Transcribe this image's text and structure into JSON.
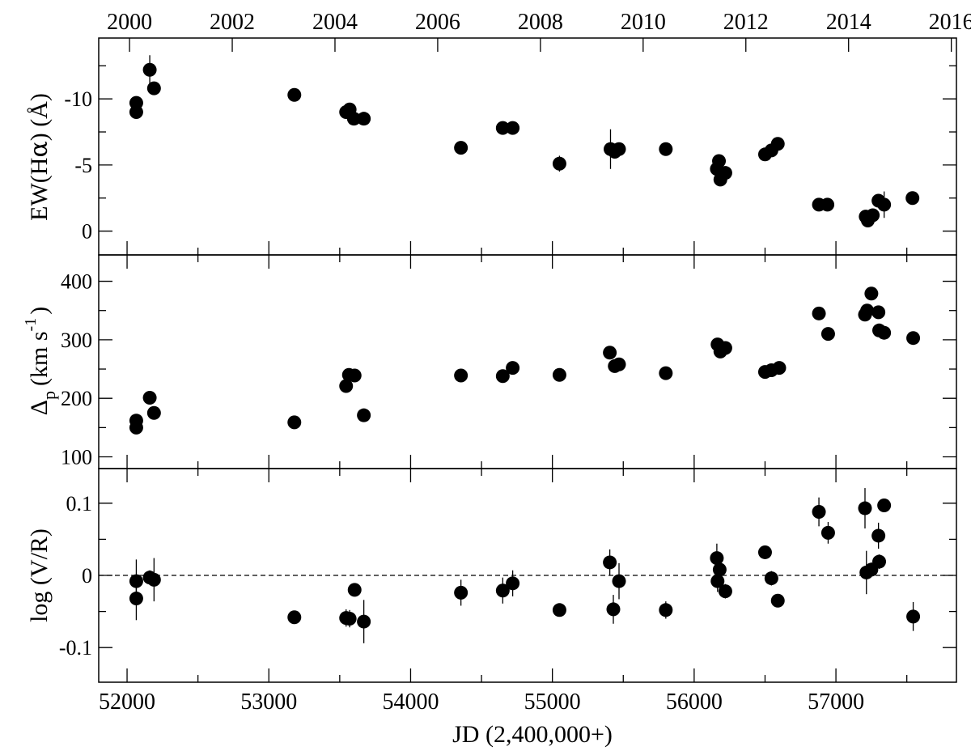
{
  "figure": {
    "top_axis": {
      "range": [
        1999.4,
        2016.1
      ],
      "ticks": [
        2000,
        2002,
        2004,
        2006,
        2008,
        2010,
        2012,
        2014,
        2016
      ],
      "tick_labels": [
        "2000",
        "2002",
        "2004",
        "2006",
        "2008",
        "2010",
        "2012",
        "2014",
        "2016"
      ]
    },
    "bottom_axis": {
      "label": "JD (2,400,000+)",
      "range": [
        51800,
        57850
      ],
      "ticks": [
        52000,
        53000,
        54000,
        55000,
        56000,
        57000
      ],
      "tick_labels": [
        "52000",
        "53000",
        "54000",
        "55000",
        "56000",
        "57000"
      ],
      "minor_ticks": [
        52500,
        53500,
        54500,
        55500,
        56500,
        57500
      ]
    }
  },
  "chart_data": [
    {
      "type": "scatter",
      "panel": "top",
      "ylabel_main": "EW(H",
      "ylabel_greek": "α",
      "ylabel_tail": ") (Å)",
      "ylim": [
        1.8,
        -14.6
      ],
      "yticks": [
        -10,
        -5,
        0
      ],
      "ytick_labels": [
        "-10",
        "-5",
        "0"
      ],
      "y_minor_ticks": [
        -12.5,
        -7.5,
        -2.5
      ],
      "points": [
        {
          "x": 52065,
          "y": -9.7,
          "err": 0.2
        },
        {
          "x": 52065,
          "y": -9.0,
          "err": 0.2
        },
        {
          "x": 52160,
          "y": -12.2,
          "err": 1.1
        },
        {
          "x": 52190,
          "y": -10.8,
          "err": 0.3
        },
        {
          "x": 53180,
          "y": -10.3,
          "err": 0.4
        },
        {
          "x": 53545,
          "y": -9.0,
          "err": 0.3
        },
        {
          "x": 53570,
          "y": -9.2,
          "err": 0.3
        },
        {
          "x": 53600,
          "y": -8.5,
          "err": 0.3
        },
        {
          "x": 53670,
          "y": -8.5,
          "err": 0.2
        },
        {
          "x": 54355,
          "y": -6.3,
          "err": 0.2
        },
        {
          "x": 54650,
          "y": -7.8,
          "err": 0.5
        },
        {
          "x": 54720,
          "y": -7.8,
          "err": 0.3
        },
        {
          "x": 55050,
          "y": -5.1,
          "err": 0.6
        },
        {
          "x": 55410,
          "y": -6.2,
          "err": 1.5
        },
        {
          "x": 55440,
          "y": -6.0,
          "err": 0.3
        },
        {
          "x": 55470,
          "y": -6.2,
          "err": 0.3
        },
        {
          "x": 55800,
          "y": -6.2,
          "err": 0.2
        },
        {
          "x": 56160,
          "y": -4.7,
          "err": 0.4
        },
        {
          "x": 56175,
          "y": -5.3,
          "err": 0.4
        },
        {
          "x": 56185,
          "y": -3.9,
          "err": 0.4
        },
        {
          "x": 56220,
          "y": -4.4,
          "err": 0.3
        },
        {
          "x": 56500,
          "y": -5.8,
          "err": 0.3
        },
        {
          "x": 56545,
          "y": -6.1,
          "err": 0.3
        },
        {
          "x": 56590,
          "y": -6.6,
          "err": 0.3
        },
        {
          "x": 56880,
          "y": -2.0,
          "err": 0.3
        },
        {
          "x": 56940,
          "y": -2.0,
          "err": 0.2
        },
        {
          "x": 57210,
          "y": -1.1,
          "err": 0.4
        },
        {
          "x": 57225,
          "y": -0.8,
          "err": 0.5
        },
        {
          "x": 57260,
          "y": -1.2,
          "err": 0.3
        },
        {
          "x": 57300,
          "y": -2.3,
          "err": 0.5
        },
        {
          "x": 57340,
          "y": -2.0,
          "err": 1.0
        },
        {
          "x": 57540,
          "y": -2.5,
          "err": 0.2
        }
      ]
    },
    {
      "type": "scatter",
      "panel": "middle",
      "ylabel_main": "Δ",
      "ylabel_sub": "p",
      "ylabel_unit": "(km s",
      "ylabel_sup": "-1",
      "ylabel_close": ")",
      "ylim": [
        80,
        445
      ],
      "yticks": [
        100,
        200,
        300,
        400
      ],
      "ytick_labels": [
        "100",
        "200",
        "300",
        "400"
      ],
      "y_minor_ticks": [
        150,
        250,
        350
      ],
      "points": [
        {
          "x": 52065,
          "y": 162
        },
        {
          "x": 52065,
          "y": 150
        },
        {
          "x": 52160,
          "y": 201
        },
        {
          "x": 52190,
          "y": 175
        },
        {
          "x": 53180,
          "y": 159
        },
        {
          "x": 53545,
          "y": 221
        },
        {
          "x": 53565,
          "y": 240
        },
        {
          "x": 53605,
          "y": 239
        },
        {
          "x": 53670,
          "y": 171
        },
        {
          "x": 54355,
          "y": 239
        },
        {
          "x": 54650,
          "y": 238
        },
        {
          "x": 54720,
          "y": 252
        },
        {
          "x": 55050,
          "y": 240
        },
        {
          "x": 55405,
          "y": 278
        },
        {
          "x": 55440,
          "y": 255
        },
        {
          "x": 55470,
          "y": 258
        },
        {
          "x": 55800,
          "y": 243
        },
        {
          "x": 56165,
          "y": 292
        },
        {
          "x": 56185,
          "y": 280
        },
        {
          "x": 56220,
          "y": 286
        },
        {
          "x": 56500,
          "y": 245
        },
        {
          "x": 56545,
          "y": 248
        },
        {
          "x": 56600,
          "y": 252
        },
        {
          "x": 56880,
          "y": 345
        },
        {
          "x": 56945,
          "y": 310
        },
        {
          "x": 57205,
          "y": 343
        },
        {
          "x": 57220,
          "y": 350
        },
        {
          "x": 57250,
          "y": 379
        },
        {
          "x": 57300,
          "y": 347
        },
        {
          "x": 57305,
          "y": 316
        },
        {
          "x": 57340,
          "y": 312
        },
        {
          "x": 57545,
          "y": 303
        }
      ]
    },
    {
      "type": "scatter",
      "panel": "bottom",
      "ylabel": "log (V/R)",
      "ylim": [
        -0.148,
        0.148
      ],
      "yticks": [
        -0.1,
        0,
        0.1
      ],
      "ytick_labels": [
        "-0.1",
        "0",
        "0.1"
      ],
      "y_minor_ticks": [
        -0.05,
        0.05
      ],
      "reference_line": {
        "y": 0,
        "style": "dashed"
      },
      "points": [
        {
          "x": 52065,
          "y": -0.008,
          "err": 0.03
        },
        {
          "x": 52065,
          "y": -0.032,
          "err": 0.03
        },
        {
          "x": 52160,
          "y": -0.003,
          "err": 0.01
        },
        {
          "x": 52190,
          "y": -0.006,
          "err": 0.03
        },
        {
          "x": 53180,
          "y": -0.058,
          "err": 0.006
        },
        {
          "x": 53545,
          "y": -0.059,
          "err": 0.012
        },
        {
          "x": 53570,
          "y": -0.06,
          "err": 0.012
        },
        {
          "x": 53605,
          "y": -0.02,
          "err": 0.006
        },
        {
          "x": 53670,
          "y": -0.064,
          "err": 0.03
        },
        {
          "x": 54355,
          "y": -0.024,
          "err": 0.018
        },
        {
          "x": 54650,
          "y": -0.021,
          "err": 0.018
        },
        {
          "x": 54720,
          "y": -0.011,
          "err": 0.018
        },
        {
          "x": 55050,
          "y": -0.048,
          "err": 0.006
        },
        {
          "x": 55405,
          "y": 0.018,
          "err": 0.018
        },
        {
          "x": 55430,
          "y": -0.047,
          "err": 0.02
        },
        {
          "x": 55470,
          "y": -0.008,
          "err": 0.025
        },
        {
          "x": 55800,
          "y": -0.048,
          "err": 0.012
        },
        {
          "x": 56160,
          "y": 0.024,
          "err": 0.02
        },
        {
          "x": 56165,
          "y": -0.008,
          "err": 0.015
        },
        {
          "x": 56180,
          "y": 0.008,
          "err": 0.012
        },
        {
          "x": 56220,
          "y": -0.022,
          "err": 0.01
        },
        {
          "x": 56500,
          "y": 0.032,
          "err": 0.006
        },
        {
          "x": 56545,
          "y": -0.004,
          "err": 0.01
        },
        {
          "x": 56590,
          "y": -0.035,
          "err": 0.006
        },
        {
          "x": 56880,
          "y": 0.088,
          "err": 0.02
        },
        {
          "x": 56945,
          "y": 0.059,
          "err": 0.015
        },
        {
          "x": 57205,
          "y": 0.093,
          "err": 0.028
        },
        {
          "x": 57215,
          "y": 0.004,
          "err": 0.03
        },
        {
          "x": 57250,
          "y": 0.008,
          "err": 0.01
        },
        {
          "x": 57300,
          "y": 0.055,
          "err": 0.018
        },
        {
          "x": 57305,
          "y": 0.019,
          "err": 0.01
        },
        {
          "x": 57340,
          "y": 0.097,
          "err": 0.006
        },
        {
          "x": 57545,
          "y": -0.057,
          "err": 0.02
        }
      ]
    }
  ]
}
